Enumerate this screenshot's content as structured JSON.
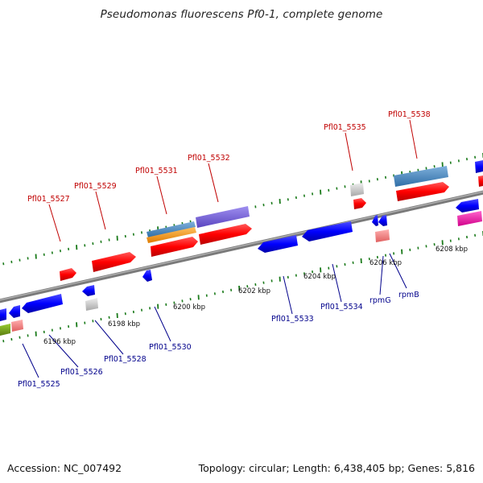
{
  "title": "Pseudomonas fluorescens Pf0-1, complete genome",
  "footer": {
    "accession": "Accession: NC_007492",
    "summary": "Topology: circular; Length: 6,438,405 bp; Genes: 5,816"
  },
  "ticks": [
    "6196 kbp",
    "6198 kbp",
    "6200 kbp",
    "6202 kbp",
    "6204 kbp",
    "6206 kbp",
    "6208 kbp"
  ],
  "labels_top": [
    "Pfl01_5527",
    "Pfl01_5529",
    "Pfl01_5531",
    "Pfl01_5532",
    "Pfl01_5535",
    "Pfl01_5538"
  ],
  "labels_bottom": [
    "Pfl01_5525",
    "Pfl01_5526",
    "Pfl01_5528",
    "Pfl01_5530",
    "Pfl01_5533",
    "Pfl01_5534",
    "rpmG",
    "rpmB"
  ],
  "colors": {
    "backbone": "#8a8a8a",
    "gene_forward": "#ff0000",
    "gene_reverse": "#0000ff",
    "label_forward": "#c00000",
    "label_reverse": "#00008b",
    "tick_dot": "#1a7a1a"
  }
}
